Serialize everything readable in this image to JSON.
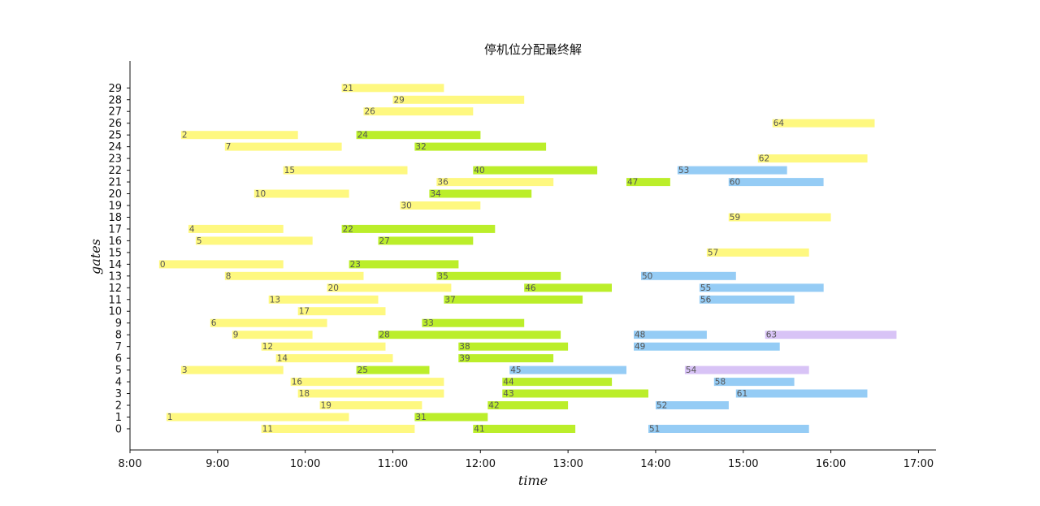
{
  "chart_data": {
    "type": "bar",
    "title": "停机位分配最终解",
    "xlabel": "time",
    "ylabel": "gates",
    "xlim": [
      "8:00",
      "17:12"
    ],
    "ylim": [
      -1.8,
      31.3
    ],
    "x_ticks": [
      "8:00",
      "9:00",
      "10:00",
      "11:00",
      "12:00",
      "13:00",
      "14:00",
      "15:00",
      "16:00",
      "17:00"
    ],
    "y_ticks": [
      0,
      1,
      2,
      3,
      4,
      5,
      6,
      7,
      8,
      9,
      10,
      11,
      12,
      13,
      14,
      15,
      16,
      17,
      18,
      19,
      20,
      21,
      22,
      23,
      24,
      25,
      26,
      27,
      28,
      29
    ],
    "grid": false,
    "colors": {
      "yellow": "#fef880",
      "green": "#bbee2a",
      "blue": "#95ccf5",
      "purple": "#d8c3f6"
    },
    "flights": [
      {
        "id": "0",
        "gate": 14,
        "start": "8:20",
        "end": "9:45",
        "color": "yellow"
      },
      {
        "id": "1",
        "gate": 1,
        "start": "8:25",
        "end": "10:30",
        "color": "yellow"
      },
      {
        "id": "2",
        "gate": 25,
        "start": "8:35",
        "end": "9:55",
        "color": "yellow"
      },
      {
        "id": "3",
        "gate": 5,
        "start": "8:35",
        "end": "9:45",
        "color": "yellow"
      },
      {
        "id": "4",
        "gate": 17,
        "start": "8:40",
        "end": "9:45",
        "color": "yellow"
      },
      {
        "id": "5",
        "gate": 16,
        "start": "8:45",
        "end": "10:05",
        "color": "yellow"
      },
      {
        "id": "6",
        "gate": 9,
        "start": "8:55",
        "end": "10:15",
        "color": "yellow"
      },
      {
        "id": "7",
        "gate": 24,
        "start": "9:05",
        "end": "10:25",
        "color": "yellow"
      },
      {
        "id": "8",
        "gate": 13,
        "start": "9:05",
        "end": "10:40",
        "color": "yellow"
      },
      {
        "id": "9",
        "gate": 8,
        "start": "9:10",
        "end": "10:05",
        "color": "yellow"
      },
      {
        "id": "10",
        "gate": 20,
        "start": "9:25",
        "end": "10:30",
        "color": "yellow"
      },
      {
        "id": "11",
        "gate": 0,
        "start": "9:30",
        "end": "11:15",
        "color": "yellow"
      },
      {
        "id": "12",
        "gate": 7,
        "start": "9:30",
        "end": "10:55",
        "color": "yellow"
      },
      {
        "id": "13",
        "gate": 11,
        "start": "9:35",
        "end": "10:50",
        "color": "yellow"
      },
      {
        "id": "14",
        "gate": 6,
        "start": "9:40",
        "end": "11:00",
        "color": "yellow"
      },
      {
        "id": "15",
        "gate": 22,
        "start": "9:45",
        "end": "11:10",
        "color": "yellow"
      },
      {
        "id": "16",
        "gate": 4,
        "start": "9:50",
        "end": "11:35",
        "color": "yellow"
      },
      {
        "id": "17",
        "gate": 10,
        "start": "9:55",
        "end": "10:55",
        "color": "yellow"
      },
      {
        "id": "18",
        "gate": 3,
        "start": "9:55",
        "end": "11:35",
        "color": "yellow"
      },
      {
        "id": "19",
        "gate": 2,
        "start": "10:10",
        "end": "11:20",
        "color": "yellow"
      },
      {
        "id": "20",
        "gate": 12,
        "start": "10:15",
        "end": "11:40",
        "color": "yellow"
      },
      {
        "id": "21",
        "gate": 29,
        "start": "10:25",
        "end": "11:35",
        "color": "yellow"
      },
      {
        "id": "22",
        "gate": 17,
        "start": "10:25",
        "end": "12:10",
        "color": "green"
      },
      {
        "id": "23",
        "gate": 14,
        "start": "10:30",
        "end": "11:45",
        "color": "green"
      },
      {
        "id": "24",
        "gate": 25,
        "start": "10:35",
        "end": "12:00",
        "color": "green"
      },
      {
        "id": "25",
        "gate": 5,
        "start": "10:35",
        "end": "11:25",
        "color": "green"
      },
      {
        "id": "26",
        "gate": 27,
        "start": "10:40",
        "end": "11:55",
        "color": "yellow"
      },
      {
        "id": "27",
        "gate": 16,
        "start": "10:50",
        "end": "11:55",
        "color": "green"
      },
      {
        "id": "28",
        "gate": 8,
        "start": "10:50",
        "end": "12:55",
        "color": "green"
      },
      {
        "id": "29",
        "gate": 28,
        "start": "11:00",
        "end": "12:30",
        "color": "yellow"
      },
      {
        "id": "30",
        "gate": 19,
        "start": "11:05",
        "end": "12:00",
        "color": "yellow"
      },
      {
        "id": "31",
        "gate": 1,
        "start": "11:15",
        "end": "12:05",
        "color": "green"
      },
      {
        "id": "32",
        "gate": 24,
        "start": "11:15",
        "end": "12:45",
        "color": "green"
      },
      {
        "id": "33",
        "gate": 9,
        "start": "11:20",
        "end": "12:30",
        "color": "green"
      },
      {
        "id": "34",
        "gate": 20,
        "start": "11:25",
        "end": "12:35",
        "color": "green"
      },
      {
        "id": "35",
        "gate": 13,
        "start": "11:30",
        "end": "12:55",
        "color": "green"
      },
      {
        "id": "36",
        "gate": 21,
        "start": "11:30",
        "end": "12:50",
        "color": "yellow"
      },
      {
        "id": "37",
        "gate": 11,
        "start": "11:35",
        "end": "13:10",
        "color": "green"
      },
      {
        "id": "38",
        "gate": 7,
        "start": "11:45",
        "end": "13:00",
        "color": "green"
      },
      {
        "id": "39",
        "gate": 6,
        "start": "11:45",
        "end": "12:50",
        "color": "green"
      },
      {
        "id": "40",
        "gate": 22,
        "start": "11:55",
        "end": "13:20",
        "color": "green"
      },
      {
        "id": "41",
        "gate": 0,
        "start": "11:55",
        "end": "13:05",
        "color": "green"
      },
      {
        "id": "42",
        "gate": 2,
        "start": "12:05",
        "end": "13:00",
        "color": "green"
      },
      {
        "id": "43",
        "gate": 3,
        "start": "12:15",
        "end": "13:55",
        "color": "green"
      },
      {
        "id": "44",
        "gate": 4,
        "start": "12:15",
        "end": "13:30",
        "color": "green"
      },
      {
        "id": "45",
        "gate": 5,
        "start": "12:20",
        "end": "13:40",
        "color": "blue"
      },
      {
        "id": "46",
        "gate": 12,
        "start": "12:30",
        "end": "13:30",
        "color": "green"
      },
      {
        "id": "47",
        "gate": 21,
        "start": "13:40",
        "end": "14:10",
        "color": "green"
      },
      {
        "id": "48",
        "gate": 8,
        "start": "13:45",
        "end": "14:35",
        "color": "blue"
      },
      {
        "id": "49",
        "gate": 7,
        "start": "13:45",
        "end": "15:25",
        "color": "blue"
      },
      {
        "id": "50",
        "gate": 13,
        "start": "13:50",
        "end": "14:55",
        "color": "blue"
      },
      {
        "id": "51",
        "gate": 0,
        "start": "13:55",
        "end": "15:45",
        "color": "blue"
      },
      {
        "id": "52",
        "gate": 2,
        "start": "14:00",
        "end": "14:50",
        "color": "blue"
      },
      {
        "id": "53",
        "gate": 22,
        "start": "14:15",
        "end": "15:30",
        "color": "blue"
      },
      {
        "id": "54",
        "gate": 5,
        "start": "14:20",
        "end": "15:45",
        "color": "purple"
      },
      {
        "id": "55",
        "gate": 12,
        "start": "14:30",
        "end": "15:55",
        "color": "blue"
      },
      {
        "id": "56",
        "gate": 11,
        "start": "14:30",
        "end": "15:35",
        "color": "blue"
      },
      {
        "id": "57",
        "gate": 15,
        "start": "14:35",
        "end": "15:45",
        "color": "yellow"
      },
      {
        "id": "58",
        "gate": 4,
        "start": "14:40",
        "end": "15:35",
        "color": "blue"
      },
      {
        "id": "59",
        "gate": 18,
        "start": "14:50",
        "end": "16:00",
        "color": "yellow"
      },
      {
        "id": "60",
        "gate": 21,
        "start": "14:50",
        "end": "15:55",
        "color": "blue"
      },
      {
        "id": "61",
        "gate": 3,
        "start": "14:55",
        "end": "16:25",
        "color": "blue"
      },
      {
        "id": "62",
        "gate": 23,
        "start": "15:10",
        "end": "16:25",
        "color": "yellow"
      },
      {
        "id": "63",
        "gate": 8,
        "start": "15:15",
        "end": "16:45",
        "color": "purple"
      },
      {
        "id": "64",
        "gate": 26,
        "start": "15:20",
        "end": "16:30",
        "color": "yellow"
      }
    ]
  }
}
